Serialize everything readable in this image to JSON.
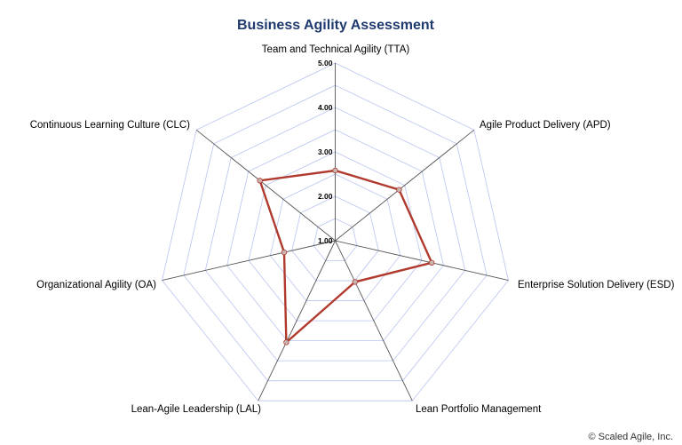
{
  "chart_data": {
    "type": "radar",
    "title": "Business Agility Assessment",
    "axes": [
      "Team and Technical Agility (TTA)",
      "Agile Product Delivery (APD)",
      "Enterprise Solution Delivery (ESD)",
      "Lean Portfolio Management",
      "Lean-Agile Leadership (LAL)",
      "Organizational Agility (OA)",
      "Continuous Learning Culture (CLC)"
    ],
    "range": [
      1,
      5
    ],
    "tick_labels": [
      "1.00",
      "2.00",
      "3.00",
      "4.00",
      "5.00"
    ],
    "grid": true,
    "series": [
      {
        "values": [
          2.58,
          2.84,
          3.23,
          2.03,
          3.54,
          2.18,
          3.17
        ],
        "color": "#b03a2e"
      }
    ],
    "grid_color": "#b8c4f0",
    "spoke_color": "#555555"
  },
  "footer": {
    "copyright": "© Scaled Agile, Inc."
  }
}
